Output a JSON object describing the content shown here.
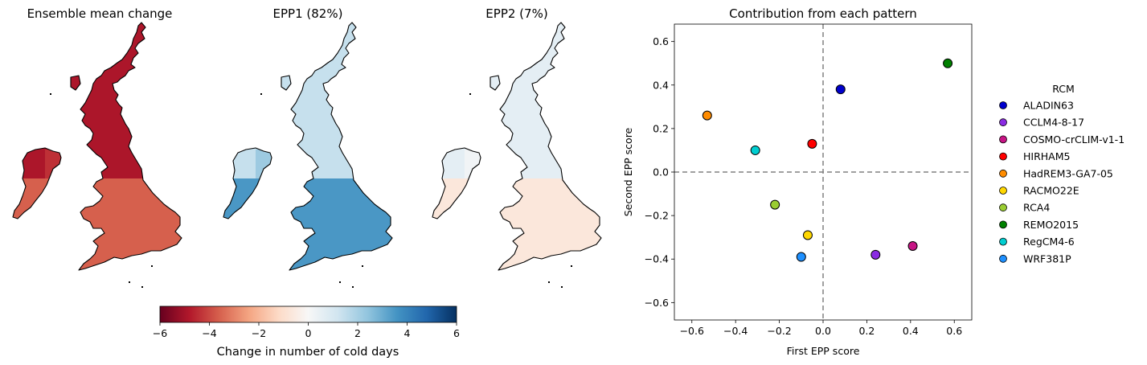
{
  "colors": {
    "diverging": [
      "#67001f",
      "#b2182b",
      "#d6604d",
      "#f4a582",
      "#fddbc7",
      "#f7f7f7",
      "#d1e5f0",
      "#92c5de",
      "#4393c3",
      "#2166ac",
      "#053061"
    ],
    "zero_line": "#808080"
  },
  "maps": [
    {
      "title": "Ensemble mean change",
      "fill": {
        "north": -4.9,
        "south": -3.6,
        "ireland": -4.4
      }
    },
    {
      "title": "EPP1 (82%)",
      "fill": {
        "north": 1.4,
        "south": 3.5,
        "ireland": 2.2
      }
    },
    {
      "title": "EPP2 (7%)",
      "fill": {
        "north": 0.6,
        "south": -0.7,
        "ireland": 0.2
      }
    }
  ],
  "colorbar": {
    "label": "Change in number of cold days",
    "range": [
      -6,
      6
    ],
    "ticks": [
      "−6",
      "−4",
      "−2",
      "0",
      "2",
      "4",
      "6"
    ]
  },
  "chart_data": {
    "type": "scatter",
    "title": "Contribution from each pattern",
    "xlabel": "First EPP score",
    "ylabel": "Second EPP score",
    "xlim": [
      -0.68,
      0.68
    ],
    "ylim": [
      -0.68,
      0.68
    ],
    "xticks": [
      -0.6,
      -0.4,
      -0.2,
      0.0,
      0.2,
      0.4,
      0.6
    ],
    "xtick_labels": [
      "−0.6",
      "−0.4",
      "−0.2",
      "0.0",
      "0.2",
      "0.4",
      "0.6"
    ],
    "yticks": [
      0.6,
      0.4,
      0.2,
      0.0,
      -0.2,
      -0.4,
      -0.6
    ],
    "ytick_labels": [
      "0.6",
      "0.4",
      "0.2",
      "0.0",
      "−0.2",
      "−0.4",
      "−0.6"
    ],
    "grid": false,
    "zero_lines": true,
    "legend": {
      "title": "RCM",
      "placement": "outside-right"
    },
    "series": [
      {
        "name": "ALADIN63",
        "color": "#0000cd",
        "x": 0.08,
        "y": 0.38
      },
      {
        "name": "CCLM4-8-17",
        "color": "#8a2be2",
        "x": 0.24,
        "y": -0.38
      },
      {
        "name": "COSMO-crCLIM-v1-1",
        "color": "#c71585",
        "x": 0.41,
        "y": -0.34
      },
      {
        "name": "HIRHAM5",
        "color": "#ff0000",
        "x": -0.05,
        "y": 0.13
      },
      {
        "name": "HadREM3-GA7-05",
        "color": "#ff8c00",
        "x": -0.53,
        "y": 0.26
      },
      {
        "name": "RACMO22E",
        "color": "#ffd700",
        "x": -0.07,
        "y": -0.29
      },
      {
        "name": "RCA4",
        "color": "#9acd32",
        "x": -0.22,
        "y": -0.15
      },
      {
        "name": "REMO2015",
        "color": "#008000",
        "x": 0.57,
        "y": 0.5
      },
      {
        "name": "RegCM4-6",
        "color": "#00ced1",
        "x": -0.31,
        "y": 0.1
      },
      {
        "name": "WRF381P",
        "color": "#1e90ff",
        "x": -0.1,
        "y": -0.39
      }
    ]
  }
}
